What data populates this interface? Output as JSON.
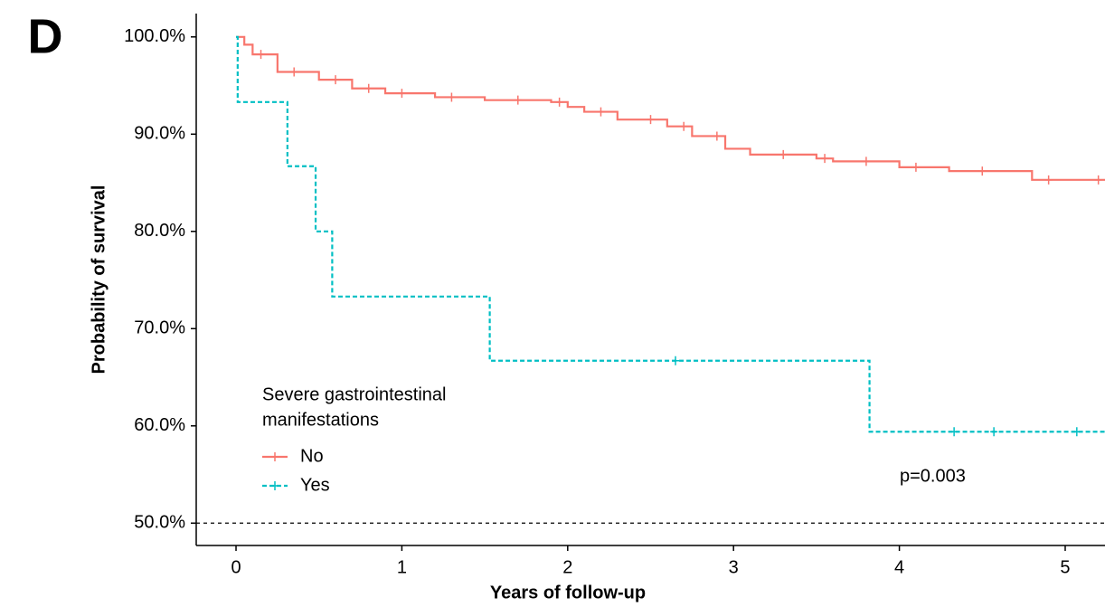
{
  "chart_data": {
    "type": "step",
    "panel_label": "D",
    "x_label": "Years of follow-up",
    "y_label": "Probability of survival",
    "xlim": [
      -0.24,
      5.24
    ],
    "ylim": [
      47.7,
      102.4
    ],
    "xticks": [
      0,
      1,
      2,
      3,
      4,
      5
    ],
    "yticks": [
      {
        "value": 50,
        "label": "50.0%"
      },
      {
        "value": 60,
        "label": "60.0%"
      },
      {
        "value": 70,
        "label": "70.0%"
      },
      {
        "value": 80,
        "label": "80.0%"
      },
      {
        "value": 90,
        "label": "90.0%"
      },
      {
        "value": 100,
        "label": "100.0%"
      }
    ],
    "hline": 50,
    "annotation": "p=0.003",
    "legend_title": [
      "Severe gastrointestinal",
      "manifestations"
    ],
    "legend": "bottom-left",
    "series": [
      {
        "name": "No",
        "color": "#f8766d",
        "dashed": false,
        "x": [
          0,
          0.05,
          0.1,
          0.25,
          0.5,
          0.7,
          0.9,
          1.2,
          1.5,
          1.9,
          2.0,
          2.1,
          2.3,
          2.6,
          2.75,
          2.95,
          3.1,
          3.5,
          3.6,
          4.0,
          4.3,
          4.8,
          5.24
        ],
        "values": [
          100,
          99.2,
          98.2,
          96.4,
          95.6,
          94.7,
          94.2,
          93.8,
          93.5,
          93.3,
          92.8,
          92.3,
          91.5,
          90.8,
          89.8,
          88.5,
          87.9,
          87.5,
          87.2,
          86.6,
          86.2,
          85.3,
          85.3
        ],
        "censor_x": [
          0.15,
          0.35,
          0.6,
          0.8,
          1.0,
          1.3,
          1.7,
          1.95,
          2.2,
          2.5,
          2.7,
          2.9,
          3.3,
          3.55,
          3.8,
          4.1,
          4.5,
          4.9,
          5.2
        ],
        "censor_values": [
          98.2,
          96.4,
          95.6,
          94.7,
          94.2,
          93.8,
          93.5,
          93.3,
          92.3,
          91.5,
          90.8,
          89.8,
          87.9,
          87.5,
          87.2,
          86.6,
          86.2,
          85.3,
          85.3
        ]
      },
      {
        "name": "Yes",
        "color": "#00bfc4",
        "dashed": true,
        "x": [
          0,
          0.01,
          0.31,
          0.48,
          0.58,
          1.53,
          3.82,
          5.24
        ],
        "values": [
          100,
          93.3,
          86.7,
          80,
          73.3,
          66.7,
          59.4,
          59.4
        ],
        "censor_x": [
          2.65,
          4.33,
          4.57,
          5.07
        ],
        "censor_values": [
          66.7,
          59.4,
          59.4,
          59.4
        ]
      }
    ]
  }
}
